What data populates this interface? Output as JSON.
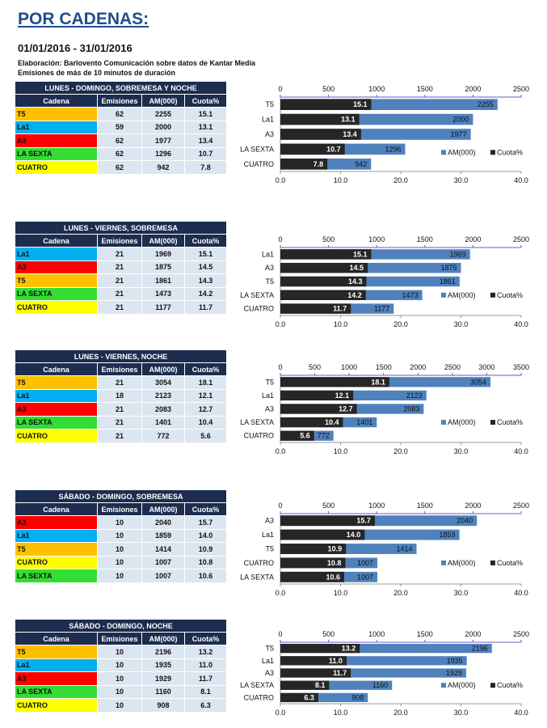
{
  "header": {
    "title": "POR CADENAS:",
    "period": "01/01/2016 - 31/01/2016",
    "source": "Elaboración:  Barlovento Comunicación  sobre datos de Kantar Media",
    "note": "Emisiones  de más de 10 minutos de duración"
  },
  "columns": [
    "Cadena",
    "Emisiones",
    "AM(000)",
    "Cuota%"
  ],
  "legend": {
    "am": "AM(000)",
    "cuota": "Cuota%"
  },
  "colors": {
    "header": "#1c2d4f",
    "cell": "#dce6f1",
    "am_bar": "#4f81bd",
    "cuota_bar": "#262626",
    "T5": "#ffc000",
    "La1": "#00b0f0",
    "A3": "#ff0000",
    "LA SEXTA": "#33dd33",
    "CUATRO": "#ffff00"
  },
  "blocks": [
    {
      "title": "LUNES - DOMINGO, SOBREMESA Y NOCHE",
      "rows": [
        [
          "T5",
          62,
          2255,
          "15.1"
        ],
        [
          "La1",
          59,
          2000,
          "13.1"
        ],
        [
          "A3",
          62,
          1977,
          "13.4"
        ],
        [
          "LA SEXTA",
          62,
          1296,
          "10.7"
        ],
        [
          "CUATRO",
          62,
          942,
          "7.8"
        ]
      ]
    },
    {
      "title": "LUNES - VIERNES, SOBREMESA",
      "rows": [
        [
          "La1",
          21,
          1969,
          "15.1"
        ],
        [
          "A3",
          21,
          1875,
          "14.5"
        ],
        [
          "T5",
          21,
          1861,
          "14.3"
        ],
        [
          "LA SEXTA",
          21,
          1473,
          "14.2"
        ],
        [
          "CUATRO",
          21,
          1177,
          "11.7"
        ]
      ]
    },
    {
      "title": "LUNES - VIERNES, NOCHE",
      "rows": [
        [
          "T5",
          21,
          3054,
          "18.1"
        ],
        [
          "La1",
          18,
          2123,
          "12.1"
        ],
        [
          "A3",
          21,
          2083,
          "12.7"
        ],
        [
          "LA SEXTA",
          21,
          1401,
          "10.4"
        ],
        [
          "CUATRO",
          21,
          772,
          "5.6"
        ]
      ]
    },
    {
      "title": "SÁBADO - DOMINGO, SOBREMESA",
      "rows": [
        [
          "A3",
          10,
          2040,
          "15.7"
        ],
        [
          "La1",
          10,
          1859,
          "14.0"
        ],
        [
          "T5",
          10,
          1414,
          "10.9"
        ],
        [
          "CUATRO",
          10,
          1007,
          "10.8"
        ],
        [
          "LA SEXTA",
          10,
          1007,
          "10.6"
        ]
      ]
    },
    {
      "title": "SÁBADO - DOMINGO, NOCHE",
      "rows": [
        [
          "T5",
          10,
          2196,
          "13.2"
        ],
        [
          "La1",
          10,
          1935,
          "11.0"
        ],
        [
          "A3",
          10,
          1929,
          "11.7"
        ],
        [
          "LA SEXTA",
          10,
          1160,
          "8.1"
        ],
        [
          "CUATRO",
          10,
          908,
          "6.3"
        ]
      ]
    }
  ],
  "chart_data": [
    {
      "type": "bar",
      "orientation": "horizontal",
      "categories": [
        "T5",
        "La1",
        "A3",
        "LA SEXTA",
        "CUATRO"
      ],
      "series": [
        {
          "name": "AM(000)",
          "axis": "top",
          "values": [
            2255,
            2000,
            1977,
            1296,
            942
          ]
        },
        {
          "name": "Cuota%",
          "axis": "bottom",
          "values": [
            15.1,
            13.1,
            13.4,
            10.7,
            7.8
          ]
        }
      ],
      "top_axis": {
        "range": [
          0,
          2500
        ],
        "ticks": [
          0,
          500,
          1000,
          1500,
          2000,
          2500
        ]
      },
      "bottom_axis": {
        "range": [
          0,
          40
        ],
        "ticks": [
          "0.0",
          "10.0",
          "20.0",
          "30.0",
          "40.0"
        ]
      },
      "legend": "bottom-right"
    },
    {
      "type": "bar",
      "orientation": "horizontal",
      "categories": [
        "La1",
        "A3",
        "T5",
        "LA SEXTA",
        "CUATRO"
      ],
      "series": [
        {
          "name": "AM(000)",
          "axis": "top",
          "values": [
            1969,
            1875,
            1861,
            1473,
            1177
          ]
        },
        {
          "name": "Cuota%",
          "axis": "bottom",
          "values": [
            15.1,
            14.5,
            14.3,
            14.2,
            11.7
          ]
        }
      ],
      "top_axis": {
        "range": [
          0,
          2500
        ],
        "ticks": [
          0,
          500,
          1000,
          1500,
          2000,
          2500
        ]
      },
      "bottom_axis": {
        "range": [
          0,
          40
        ],
        "ticks": [
          "0.0",
          "10.0",
          "20.0",
          "30.0",
          "40.0"
        ]
      },
      "legend": "bottom-right"
    },
    {
      "type": "bar",
      "orientation": "horizontal",
      "categories": [
        "T5",
        "La1",
        "A3",
        "LA SEXTA",
        "CUATRO"
      ],
      "series": [
        {
          "name": "AM(000)",
          "axis": "top",
          "values": [
            3054,
            2123,
            2083,
            1401,
            772
          ]
        },
        {
          "name": "Cuota%",
          "axis": "bottom",
          "values": [
            18.1,
            12.1,
            12.7,
            10.4,
            5.6
          ]
        }
      ],
      "top_axis": {
        "range": [
          0,
          3500
        ],
        "ticks": [
          0,
          500,
          1000,
          1500,
          2000,
          2500,
          3000,
          3500
        ]
      },
      "bottom_axis": {
        "range": [
          0,
          40
        ],
        "ticks": [
          "0.0",
          "10.0",
          "20.0",
          "30.0",
          "40.0"
        ]
      },
      "legend": "bottom-right"
    },
    {
      "type": "bar",
      "orientation": "horizontal",
      "categories": [
        "A3",
        "La1",
        "T5",
        "CUATRO",
        "LA SEXTA"
      ],
      "series": [
        {
          "name": "AM(000)",
          "axis": "top",
          "values": [
            2040,
            1859,
            1414,
            1007,
            1007
          ]
        },
        {
          "name": "Cuota%",
          "axis": "bottom",
          "values": [
            15.7,
            14.0,
            10.9,
            10.8,
            10.6
          ]
        }
      ],
      "top_axis": {
        "range": [
          0,
          2500
        ],
        "ticks": [
          0,
          500,
          1000,
          1500,
          2000,
          2500
        ]
      },
      "bottom_axis": {
        "range": [
          0,
          40
        ],
        "ticks": [
          "0.0",
          "10.0",
          "20.0",
          "30.0",
          "40.0"
        ]
      },
      "legend": "bottom-right"
    },
    {
      "type": "bar",
      "orientation": "horizontal",
      "categories": [
        "T5",
        "La1",
        "A3",
        "LA SEXTA",
        "CUATRO"
      ],
      "series": [
        {
          "name": "AM(000)",
          "axis": "top",
          "values": [
            2196,
            1935,
            1929,
            1160,
            908
          ]
        },
        {
          "name": "Cuota%",
          "axis": "bottom",
          "values": [
            13.2,
            11.0,
            11.7,
            8.1,
            6.3
          ]
        }
      ],
      "top_axis": {
        "range": [
          0,
          2500
        ],
        "ticks": [
          0,
          500,
          1000,
          1500,
          2000,
          2500
        ]
      },
      "bottom_axis": {
        "range": [
          0,
          40
        ],
        "ticks": [
          "0.0",
          "10.0",
          "20.0",
          "30.0",
          "40.0"
        ]
      },
      "legend": "bottom-right"
    }
  ]
}
